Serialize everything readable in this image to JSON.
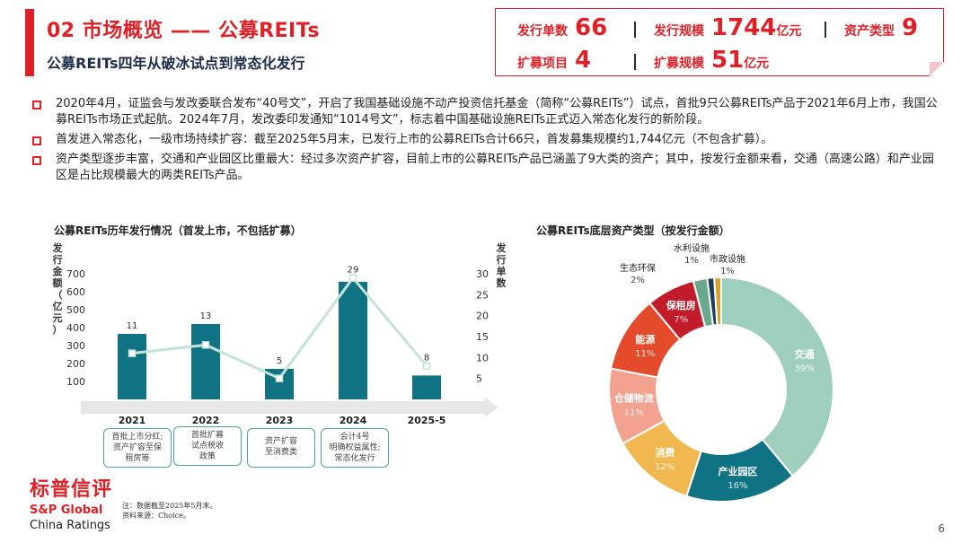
{
  "header": {
    "title": "02 市场概览 —— 公募REITs",
    "subtitle": "公募REITs四年从破冰试点到常态化发行"
  },
  "stats": {
    "issue_count_label": "发行单数",
    "issue_count": "66",
    "issue_scale_label": "发行规模",
    "issue_scale": "1744",
    "issue_scale_unit": "亿元",
    "asset_types_label": "资产类型",
    "asset_types": "9",
    "expansion_projects_label": "扩募项目",
    "expansion_projects": "4",
    "expansion_scale_label": "扩募规模",
    "expansion_scale": "51",
    "expansion_scale_unit": "亿元"
  },
  "bullets": [
    "2020年4月，证监会与发改委联合发布“40号文”，开启了我国基础设施不动产投资信托基金（简称“公募REITs”）试点，首批9只公募REITs产品于2021年6月上市，我国公募REITs市场正式起航。2024年7月，发改委印发通知“1014号文”，标志着中国基础设施REITs正式迈入常态化发行的新阶段。",
    "首发进入常态化，一级市场持续扩容：截至2025年5月末，已发行上市的公募REITs合计66只，首发募集规模约1,744亿元（不包含扩募）。",
    "资产类型逐步丰富，交通和产业园区比重最大：经过多次资产扩容，目前上市的公募REITs产品已涵盖了9大类的资产；其中，按发行金额来看，交通（高速公路）和产业园区是占比规模最大的两类REITs产品。"
  ],
  "chart_titles": {
    "left": "公募REITs历年发行情况（首发上市，不包括扩募）",
    "right": "公募REITs底层资产类型（按发行金额）"
  },
  "chart_data": [
    {
      "type": "bar",
      "categories": [
        "2021",
        "2022",
        "2023",
        "2024",
        "2025-5"
      ],
      "series": [
        {
          "values": [
            365,
            420,
            170,
            655,
            133
          ],
          "axis": "left",
          "color": "#0f7384"
        },
        {
          "values": [
            11,
            13,
            5,
            29,
            8
          ],
          "axis": "right",
          "type": "line",
          "color": "#c3e3d6"
        }
      ],
      "ylabel": "发行金额（亿元）",
      "y2label": "发行单数",
      "ylim": [
        0,
        700
      ],
      "yticks": [
        100,
        200,
        300,
        400,
        500,
        600,
        700
      ],
      "y2lim": [
        0,
        30
      ],
      "y2ticks": [
        5,
        10,
        15,
        20,
        25,
        30
      ],
      "data_labels": [
        "11",
        "13",
        "5",
        "29",
        "8"
      ]
    },
    {
      "type": "pie",
      "labels": [
        "交通",
        "产业园区",
        "消费",
        "仓储物流",
        "能源",
        "保租房",
        "生态环保",
        "水利设施",
        "市政设施"
      ],
      "values": [
        39,
        16,
        12,
        11,
        11,
        7,
        2,
        1,
        1
      ],
      "value_labels": [
        "39%",
        "16%",
        "12%",
        "11%",
        "11%",
        "7%",
        "2%",
        "1%",
        "1%"
      ],
      "colors": [
        "#9ecfbd",
        "#0f7384",
        "#f1b84f",
        "#f2a28f",
        "#e34b2a",
        "#c21b2a",
        "#6aa88e",
        "#1f3a5a",
        "#d9a233"
      ]
    }
  ],
  "notes": [
    [
      "首批上市分红;",
      "资产扩容至保",
      "租房等"
    ],
    [
      "首批扩募",
      "试点税收",
      "政策"
    ],
    [
      "资产扩容",
      "至消费类"
    ],
    [
      "会计4号",
      "明确权益属性;",
      "常态化发行"
    ]
  ],
  "logo": {
    "cn": "标普信评",
    "en1": "S&P Global",
    "en2": "China Ratings"
  },
  "footnote": {
    "line1": "注：数据截至2025年5月末。",
    "line2": "资料来源：Choice。"
  },
  "page_number": "6"
}
